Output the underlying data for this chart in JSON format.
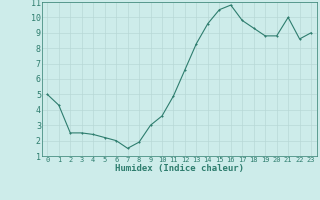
{
  "x": [
    0,
    1,
    2,
    3,
    4,
    5,
    6,
    7,
    8,
    9,
    10,
    11,
    12,
    13,
    14,
    15,
    16,
    17,
    18,
    19,
    20,
    21,
    22,
    23
  ],
  "y": [
    5.0,
    4.3,
    2.5,
    2.5,
    2.4,
    2.2,
    2.0,
    1.5,
    1.9,
    3.0,
    3.6,
    4.9,
    6.6,
    8.3,
    9.6,
    10.5,
    10.8,
    9.8,
    9.3,
    8.8,
    8.8,
    10.0,
    8.6,
    9.0
  ],
  "line_color": "#2e7d6e",
  "bg_color": "#cdecea",
  "grid_color": "#b8d8d6",
  "xlabel": "Humidex (Indice chaleur)",
  "xlim": [
    -0.5,
    23.5
  ],
  "ylim": [
    1,
    11
  ],
  "xticks": [
    0,
    1,
    2,
    3,
    4,
    5,
    6,
    7,
    8,
    9,
    10,
    11,
    12,
    13,
    14,
    15,
    16,
    17,
    18,
    19,
    20,
    21,
    22,
    23
  ],
  "yticks": [
    1,
    2,
    3,
    4,
    5,
    6,
    7,
    8,
    9,
    10,
    11
  ],
  "xlabel_fontsize": 6.5,
  "xtick_fontsize": 5.0,
  "ytick_fontsize": 6.0,
  "marker_size": 2.0,
  "line_width": 0.8
}
